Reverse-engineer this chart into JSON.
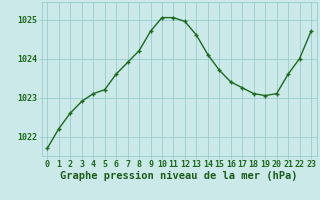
{
  "x": [
    0,
    1,
    2,
    3,
    4,
    5,
    6,
    7,
    8,
    9,
    10,
    11,
    12,
    13,
    14,
    15,
    16,
    17,
    18,
    19,
    20,
    21,
    22,
    23
  ],
  "y": [
    1021.7,
    1022.2,
    1022.6,
    1022.9,
    1023.1,
    1023.2,
    1023.6,
    1023.9,
    1024.2,
    1024.7,
    1025.05,
    1025.05,
    1024.95,
    1024.6,
    1024.1,
    1023.7,
    1023.4,
    1023.25,
    1023.1,
    1023.05,
    1023.1,
    1023.6,
    1024.0,
    1024.7
  ],
  "line_color": "#1a6b1a",
  "marker": "+",
  "marker_size": 3.5,
  "marker_lw": 1.0,
  "bg_color": "#cce9e9",
  "grid_color": "#99cccc",
  "ylabel_ticks": [
    1022,
    1023,
    1024,
    1025
  ],
  "xlabel_label": "Graphe pression niveau de la mer (hPa)",
  "ylim": [
    1021.5,
    1025.45
  ],
  "xlim": [
    -0.5,
    23.5
  ],
  "tick_label_color": "#1a6b1a",
  "label_fontsize": 6.0,
  "axis_label_fontsize": 7.5,
  "line_width": 1.0
}
